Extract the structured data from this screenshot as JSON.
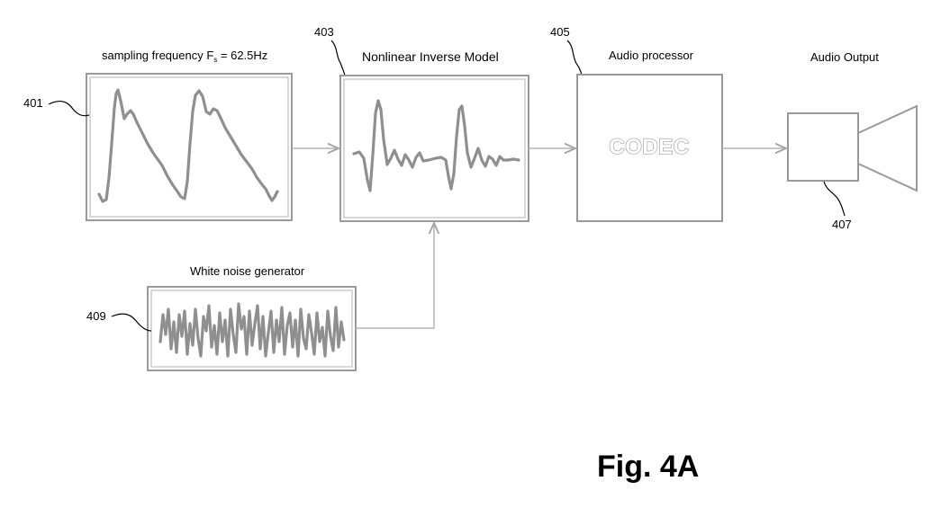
{
  "figure_caption": "Fig. 4A",
  "blocks": {
    "sensor": {
      "ref": "401",
      "title": "sampling frequency  F",
      "subscript": "s",
      "title_suffix": " = 62.5Hz"
    },
    "inverse_model": {
      "ref": "403",
      "title": "Nonlinear Inverse Model"
    },
    "audio_processor": {
      "ref": "405",
      "title": "Audio processor",
      "inner_text": "CODEC"
    },
    "audio_output": {
      "ref": "407",
      "title": "Audio Output"
    },
    "noise_generator": {
      "ref": "409",
      "title": "White noise generator"
    }
  },
  "colors": {
    "box_stroke": "#9a9a9a",
    "waveform": "#8f8f8f",
    "connector": "#b3b3b3",
    "leader": "#000000"
  },
  "icons": {
    "speaker": "speaker-icon"
  }
}
